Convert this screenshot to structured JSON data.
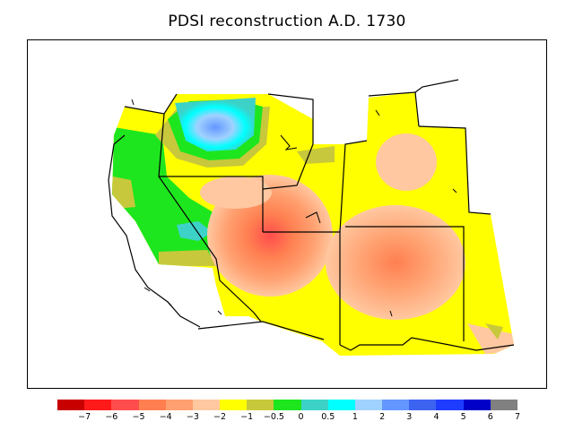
{
  "title": "PDSI reconstruction A.D. 1730",
  "map": {
    "region": "western United States",
    "variable": "PDSI"
  },
  "colorbar": {
    "colors": [
      "#c80000",
      "#ff1a1a",
      "#ff4d4d",
      "#ff7f50",
      "#ffa070",
      "#ffc8a0",
      "#ffff00",
      "#c8c83c",
      "#1ee61e",
      "#3cd2c8",
      "#00ffff",
      "#a0d2ff",
      "#6496ff",
      "#3c64f0",
      "#1e3cff",
      "#0000c8",
      "#808080"
    ],
    "labels": [
      "−7",
      "−6",
      "−5",
      "−4",
      "−3",
      "−2",
      "−1",
      "−0.5",
      "0",
      "0.5",
      "1",
      "2",
      "3",
      "4",
      "5",
      "6",
      "7"
    ]
  }
}
